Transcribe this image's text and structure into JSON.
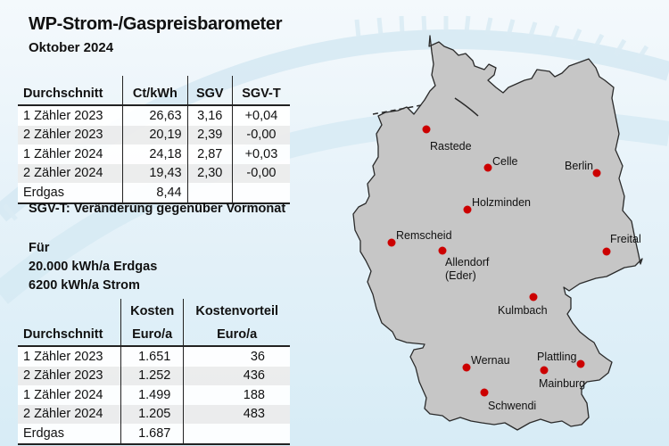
{
  "header": {
    "title": "WP-Strom-/Gaspreisbarometer",
    "subtitle": "Oktober 2024"
  },
  "price_table": {
    "columns": [
      "Durchschnitt",
      "Ct/kWh",
      "SGV",
      "SGV-T"
    ],
    "rows": [
      {
        "label": "1 Zähler 2023",
        "ct_kwh": "26,63",
        "sgv": "3,16",
        "sgv_t": "+0,04"
      },
      {
        "label": "2 Zähler 2023",
        "ct_kwh": "20,19",
        "sgv": "2,39",
        "sgv_t": "-0,00"
      },
      {
        "label": "1 Zähler 2024",
        "ct_kwh": "24,18",
        "sgv": "2,87",
        "sgv_t": "+0,03"
      },
      {
        "label": "2 Zähler 2024",
        "ct_kwh": "19,43",
        "sgv": "2,30",
        "sgv_t": "-0,00"
      },
      {
        "label": "Erdgas",
        "ct_kwh": "8,44",
        "sgv": "",
        "sgv_t": ""
      }
    ]
  },
  "note": "SGV-T: Veränderung gegenüber Vormonat",
  "assumptions": {
    "line1": "Für",
    "line2": "20.000 kWh/a Erdgas",
    "line3": "6200 kWh/a Strom"
  },
  "cost_table": {
    "columns": [
      {
        "line1": "",
        "line2": "Durchschnitt"
      },
      {
        "line1": "Kosten",
        "line2": "Euro/a"
      },
      {
        "line1": "Kostenvorteil",
        "line2": "Euro/a"
      }
    ],
    "rows": [
      {
        "label": "1 Zähler 2023",
        "kosten": "1.651",
        "vorteil": "36"
      },
      {
        "label": "2 Zähler 2023",
        "kosten": "1.252",
        "vorteil": "436"
      },
      {
        "label": "1 Zähler 2024",
        "kosten": "1.499",
        "vorteil": "188"
      },
      {
        "label": "2 Zähler 2024",
        "kosten": "1.205",
        "vorteil": "483"
      },
      {
        "label": "Erdgas",
        "kosten": "1.687",
        "vorteil": ""
      }
    ]
  },
  "map": {
    "fill_color": "#c6c6c6",
    "outline_color": "#2a2a2a",
    "dot_color": "#cc0000",
    "cities": [
      {
        "name": "Rastede",
        "dot": [
          478,
          145
        ],
        "label": [
          482,
          157
        ]
      },
      {
        "name": "Celle",
        "dot": [
          547,
          188
        ],
        "label": [
          552,
          174
        ]
      },
      {
        "name": "Berlin",
        "dot": [
          669,
          194
        ],
        "label": [
          633,
          179
        ]
      },
      {
        "name": "Holzminden",
        "dot": [
          524,
          235
        ],
        "label": [
          529,
          220
        ]
      },
      {
        "name": "Remscheid",
        "dot": [
          439,
          272
        ],
        "label": [
          444,
          257
        ]
      },
      {
        "name": "Allendorf\n(Eder)",
        "dot": [
          496,
          281
        ],
        "label": [
          499,
          287
        ]
      },
      {
        "name": "Freital",
        "dot": [
          680,
          282
        ],
        "label": [
          684,
          261
        ]
      },
      {
        "name": "Kulmbach",
        "dot": [
          598,
          333
        ],
        "label": [
          558,
          341
        ]
      },
      {
        "name": "Wernau",
        "dot": [
          523,
          412
        ],
        "label": [
          528,
          397
        ]
      },
      {
        "name": "Plattling",
        "dot": [
          651,
          408
        ],
        "label": [
          602,
          393
        ]
      },
      {
        "name": "Mainburg",
        "dot": [
          610,
          415
        ],
        "label": [
          604,
          423
        ]
      },
      {
        "name": "Schwendi",
        "dot": [
          543,
          440
        ],
        "label": [
          547,
          448
        ]
      }
    ]
  }
}
